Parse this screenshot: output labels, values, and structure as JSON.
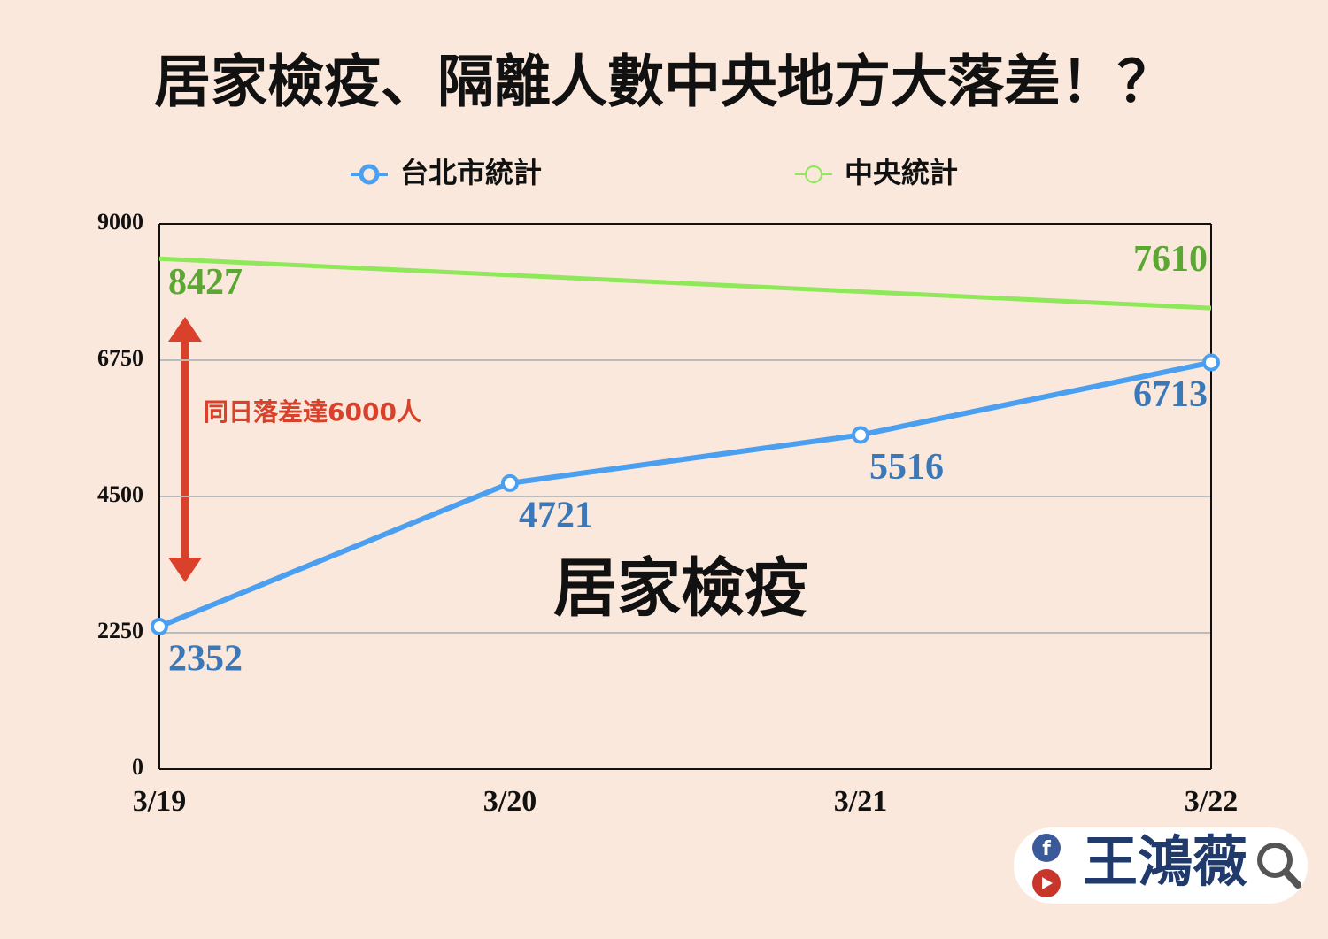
{
  "chart_data": {
    "type": "line",
    "title": "居家檢疫、隔離人數中央地方大落差！？",
    "categories": [
      "3/19",
      "3/20",
      "3/21",
      "3/22"
    ],
    "series": [
      {
        "name": "台北市統計",
        "color": "#4a9ff0",
        "label_color": "#3a78b8",
        "markers": true,
        "data_labels": "all",
        "values": [
          2352,
          4721,
          5516,
          6713
        ]
      },
      {
        "name": "中央統計",
        "color": "#8ee85a",
        "label_color": "#5aa832",
        "markers": false,
        "data_labels": "ends",
        "values": [
          8427,
          8155,
          7882,
          7610
        ]
      }
    ],
    "ylim": [
      0,
      9000
    ],
    "yticks": [
      0,
      2250,
      4500,
      6750,
      9000
    ],
    "grid": true,
    "annotations": {
      "gap": "同日落差達6000人",
      "label": "居家檢疫"
    },
    "footer": "王鴻薇"
  }
}
